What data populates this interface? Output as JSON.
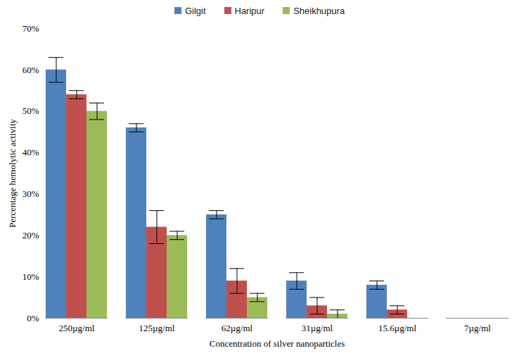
{
  "chart_data": {
    "type": "bar",
    "x_label": "Concentration of silver nanoparticles",
    "y_label": "Percentage hemolytic activity",
    "categories": [
      "250µg/ml",
      "125µg/ml",
      "62µg/ml",
      "31µg/ml",
      "15.6µg/ml",
      "7µg/ml"
    ],
    "series": [
      {
        "name": "Gilgit",
        "color": "#4f81bd",
        "values": [
          60,
          46,
          25,
          9,
          8,
          0
        ],
        "errors": [
          3,
          1,
          1,
          2,
          1,
          0
        ]
      },
      {
        "name": "Haripur",
        "color": "#c0504d",
        "values": [
          54,
          22,
          9,
          3,
          2,
          0
        ],
        "errors": [
          1,
          4,
          3,
          2,
          1,
          0
        ]
      },
      {
        "name": "Sheikhupura",
        "color": "#9bbb59",
        "values": [
          50,
          20,
          5,
          1,
          0,
          0
        ],
        "errors": [
          2,
          1,
          1,
          1,
          0,
          0
        ]
      }
    ],
    "ylim": [
      0,
      70
    ],
    "yticks": [
      {
        "value": 0,
        "label": "0%"
      },
      {
        "value": 10,
        "label": "10%"
      },
      {
        "value": 20,
        "label": "20%"
      },
      {
        "value": 30,
        "label": "30%"
      },
      {
        "value": 40,
        "label": "40%"
      },
      {
        "value": 50,
        "label": "50%"
      },
      {
        "value": 60,
        "label": "60%"
      },
      {
        "value": 70,
        "label": "70%"
      }
    ],
    "grid": false,
    "legend": "top"
  }
}
